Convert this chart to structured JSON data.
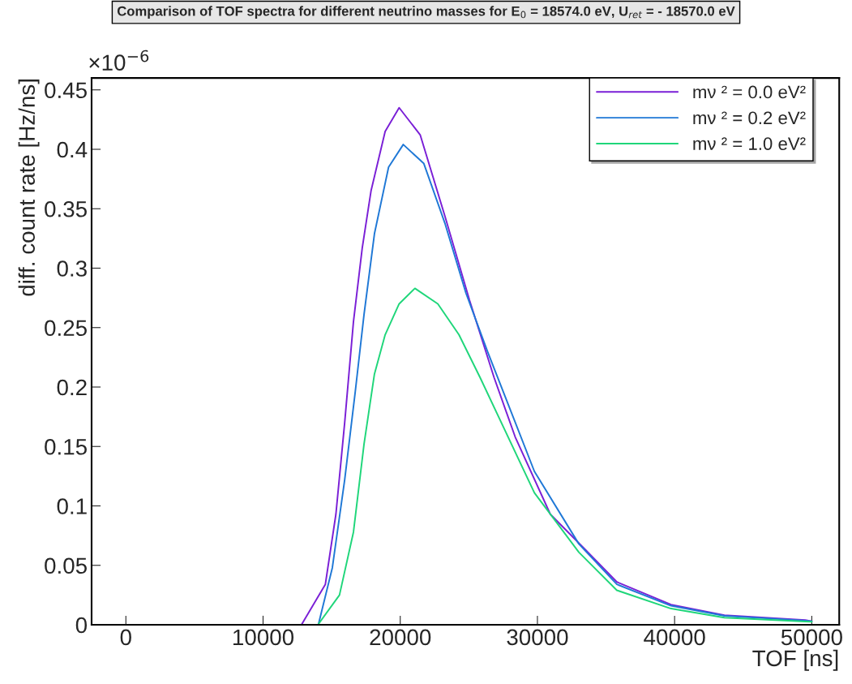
{
  "chart_data": {
    "type": "line",
    "title": "Comparison of TOF spectra for different neutrino masses for E$_{0}$ = 18574.0 eV, U$_{ret}$ = - 18570.0 eV",
    "xlabel": "TOF [ns]",
    "ylabel": "diff. count rate [Hz/ns]",
    "annotations": [
      "×10$^{−6}$"
    ],
    "series": [
      {
        "name": "mν ² = 0.0 eV²",
        "color": "#7a1fd6",
        "x": [
          -2500,
          12800,
          14540,
          15310,
          15950,
          16590,
          17230,
          17870,
          18900,
          19920,
          21460,
          23250,
          25050,
          26840,
          28380,
          30940,
          33510,
          35790,
          39740,
          43630,
          49530,
          50000
        ],
        "values": [
          0,
          0,
          0.034,
          0.093,
          0.17,
          0.255,
          0.317,
          0.365,
          0.415,
          0.435,
          0.412,
          0.344,
          0.273,
          0.208,
          0.158,
          0.093,
          0.063,
          0.036,
          0.017,
          0.008,
          0.004,
          0.003
        ]
      },
      {
        "name": "mν ² = 0.2 eV²",
        "color": "#1f78d6",
        "x": [
          -2500,
          14030,
          15050,
          15950,
          16720,
          17360,
          18120,
          19150,
          20220,
          21720,
          23250,
          24790,
          26360,
          29780,
          33020,
          35790,
          39740,
          43630,
          49530,
          50000
        ],
        "values": [
          0,
          0,
          0.048,
          0.122,
          0.196,
          0.261,
          0.329,
          0.385,
          0.404,
          0.388,
          0.338,
          0.279,
          0.23,
          0.129,
          0.068,
          0.034,
          0.016,
          0.0075,
          0.0035,
          0.003
        ]
      },
      {
        "name": "mν ² = 1.0 eV²",
        "color": "#1fd67a",
        "x": [
          -2500,
          14000,
          15570,
          16590,
          17360,
          18120,
          18900,
          19920,
          21070,
          22740,
          24280,
          25820,
          29780,
          33020,
          35790,
          39740,
          43630,
          49530,
          50000
        ],
        "values": [
          0,
          0,
          0.025,
          0.078,
          0.152,
          0.211,
          0.244,
          0.27,
          0.283,
          0.27,
          0.244,
          0.208,
          0.111,
          0.061,
          0.029,
          0.0136,
          0.006,
          0.0027,
          0.0025
        ]
      }
    ],
    "xlim": [
      -2500,
      52000
    ],
    "xticks": [
      0,
      10000,
      20000,
      30000,
      40000,
      50000
    ],
    "ylim": [
      0,
      0.46
    ],
    "yticks": [
      0,
      0.05,
      0.1,
      0.15,
      0.2,
      0.25,
      0.3,
      0.35,
      0.4,
      0.45
    ],
    "grid": false,
    "legend": "top right",
    "marker": "none",
    "line_style": "solid"
  }
}
